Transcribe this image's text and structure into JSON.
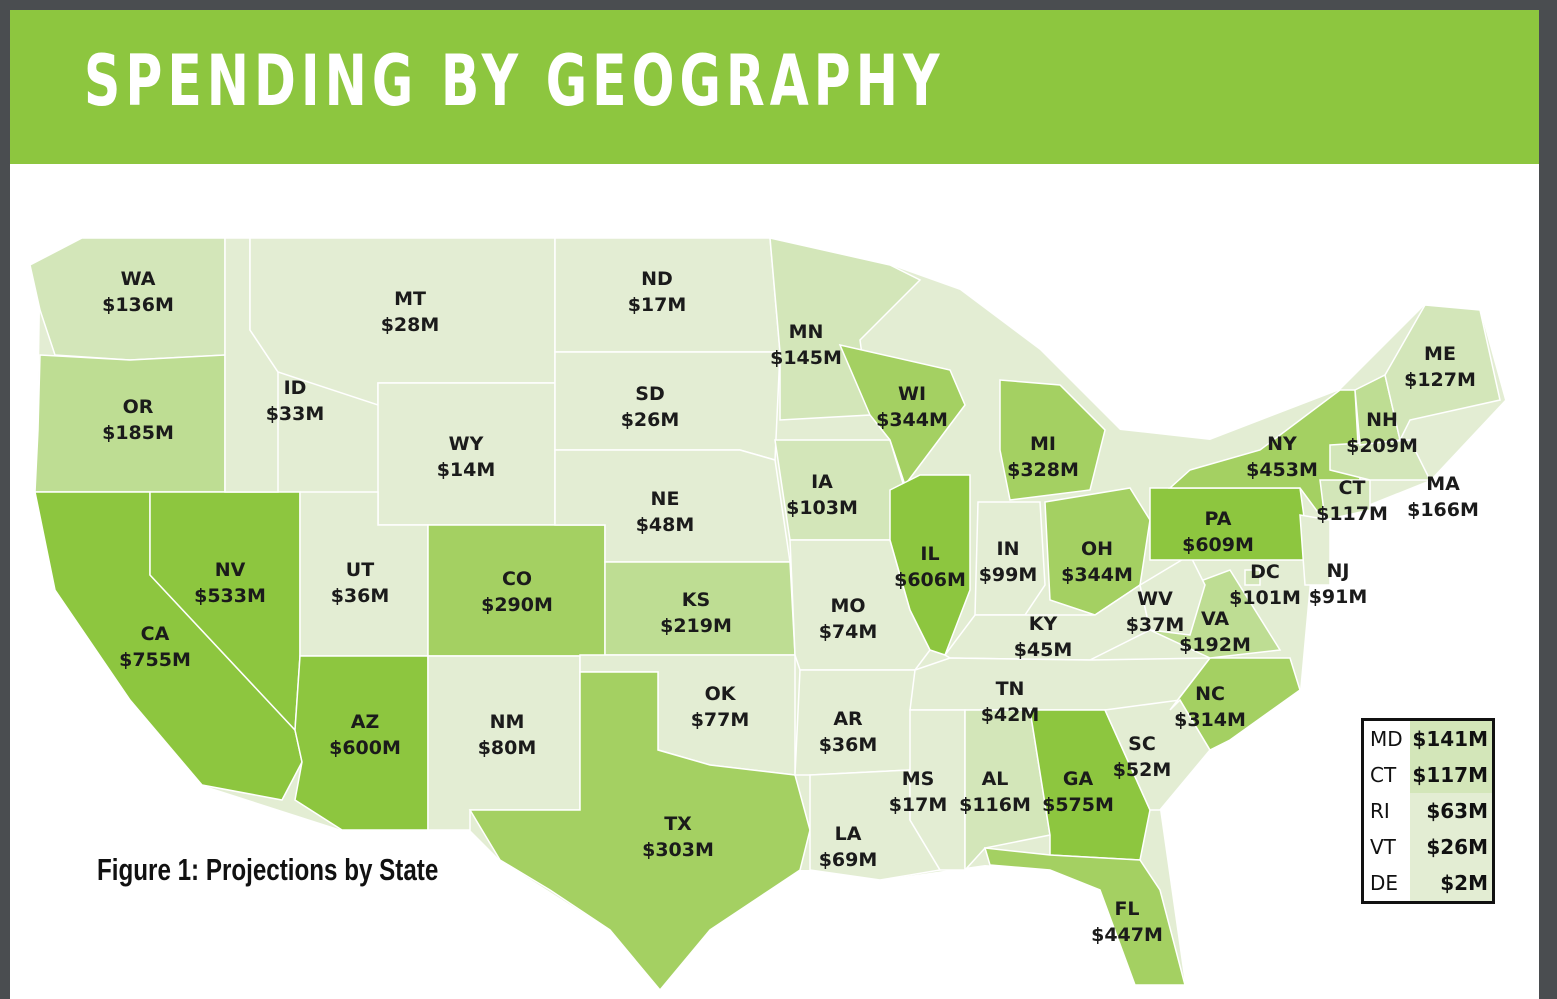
{
  "header": {
    "title": "SPENDING BY GEOGRAPHY"
  },
  "caption": "Figure 1: Projections by State",
  "colors": {
    "header_green": "#8dc63f",
    "shade_lightest": "#e3edd3",
    "shade_light": "#d3e6b9",
    "shade_mid": "#bedd93",
    "shade_strong": "#a4d062",
    "shade_strongest": "#8dc63f",
    "state_border": "#ffffff"
  },
  "states": [
    {
      "abbr": "WA",
      "value": "$136M"
    },
    {
      "abbr": "OR",
      "value": "$185M"
    },
    {
      "abbr": "CA",
      "value": "$755M"
    },
    {
      "abbr": "NV",
      "value": "$533M"
    },
    {
      "abbr": "ID",
      "value": "$33M"
    },
    {
      "abbr": "MT",
      "value": "$28M"
    },
    {
      "abbr": "WY",
      "value": "$14M"
    },
    {
      "abbr": "UT",
      "value": "$36M"
    },
    {
      "abbr": "AZ",
      "value": "$600M"
    },
    {
      "abbr": "CO",
      "value": "$290M"
    },
    {
      "abbr": "NM",
      "value": "$80M"
    },
    {
      "abbr": "ND",
      "value": "$17M"
    },
    {
      "abbr": "SD",
      "value": "$26M"
    },
    {
      "abbr": "NE",
      "value": "$48M"
    },
    {
      "abbr": "KS",
      "value": "$219M"
    },
    {
      "abbr": "OK",
      "value": "$77M"
    },
    {
      "abbr": "TX",
      "value": "$303M"
    },
    {
      "abbr": "MN",
      "value": "$145M"
    },
    {
      "abbr": "IA",
      "value": "$103M"
    },
    {
      "abbr": "MO",
      "value": "$74M"
    },
    {
      "abbr": "AR",
      "value": "$36M"
    },
    {
      "abbr": "LA",
      "value": "$69M"
    },
    {
      "abbr": "WI",
      "value": "$344M"
    },
    {
      "abbr": "IL",
      "value": "$606M"
    },
    {
      "abbr": "MI",
      "value": "$328M"
    },
    {
      "abbr": "IN",
      "value": "$99M"
    },
    {
      "abbr": "OH",
      "value": "$344M"
    },
    {
      "abbr": "KY",
      "value": "$45M"
    },
    {
      "abbr": "TN",
      "value": "$42M"
    },
    {
      "abbr": "MS",
      "value": "$17M"
    },
    {
      "abbr": "AL",
      "value": "$116M"
    },
    {
      "abbr": "GA",
      "value": "$575M"
    },
    {
      "abbr": "FL",
      "value": "$447M"
    },
    {
      "abbr": "SC",
      "value": "$52M"
    },
    {
      "abbr": "NC",
      "value": "$314M"
    },
    {
      "abbr": "VA",
      "value": "$192M"
    },
    {
      "abbr": "WV",
      "value": "$37M"
    },
    {
      "abbr": "DC",
      "value": "$101M"
    },
    {
      "abbr": "PA",
      "value": "$609M"
    },
    {
      "abbr": "NY",
      "value": "$453M"
    },
    {
      "abbr": "NJ",
      "value": "$91M"
    },
    {
      "abbr": "CT",
      "value": "$117M"
    },
    {
      "abbr": "MA",
      "value": "$166M"
    },
    {
      "abbr": "NH",
      "value": "$209M"
    },
    {
      "abbr": "ME",
      "value": "$127M"
    }
  ],
  "small_states_table": [
    {
      "abbr": "MD",
      "value": "$141M"
    },
    {
      "abbr": "CT",
      "value": "$117M"
    },
    {
      "abbr": "RI",
      "value": "$63M"
    },
    {
      "abbr": "VT",
      "value": "$26M"
    },
    {
      "abbr": "DE",
      "value": "$2M"
    }
  ]
}
